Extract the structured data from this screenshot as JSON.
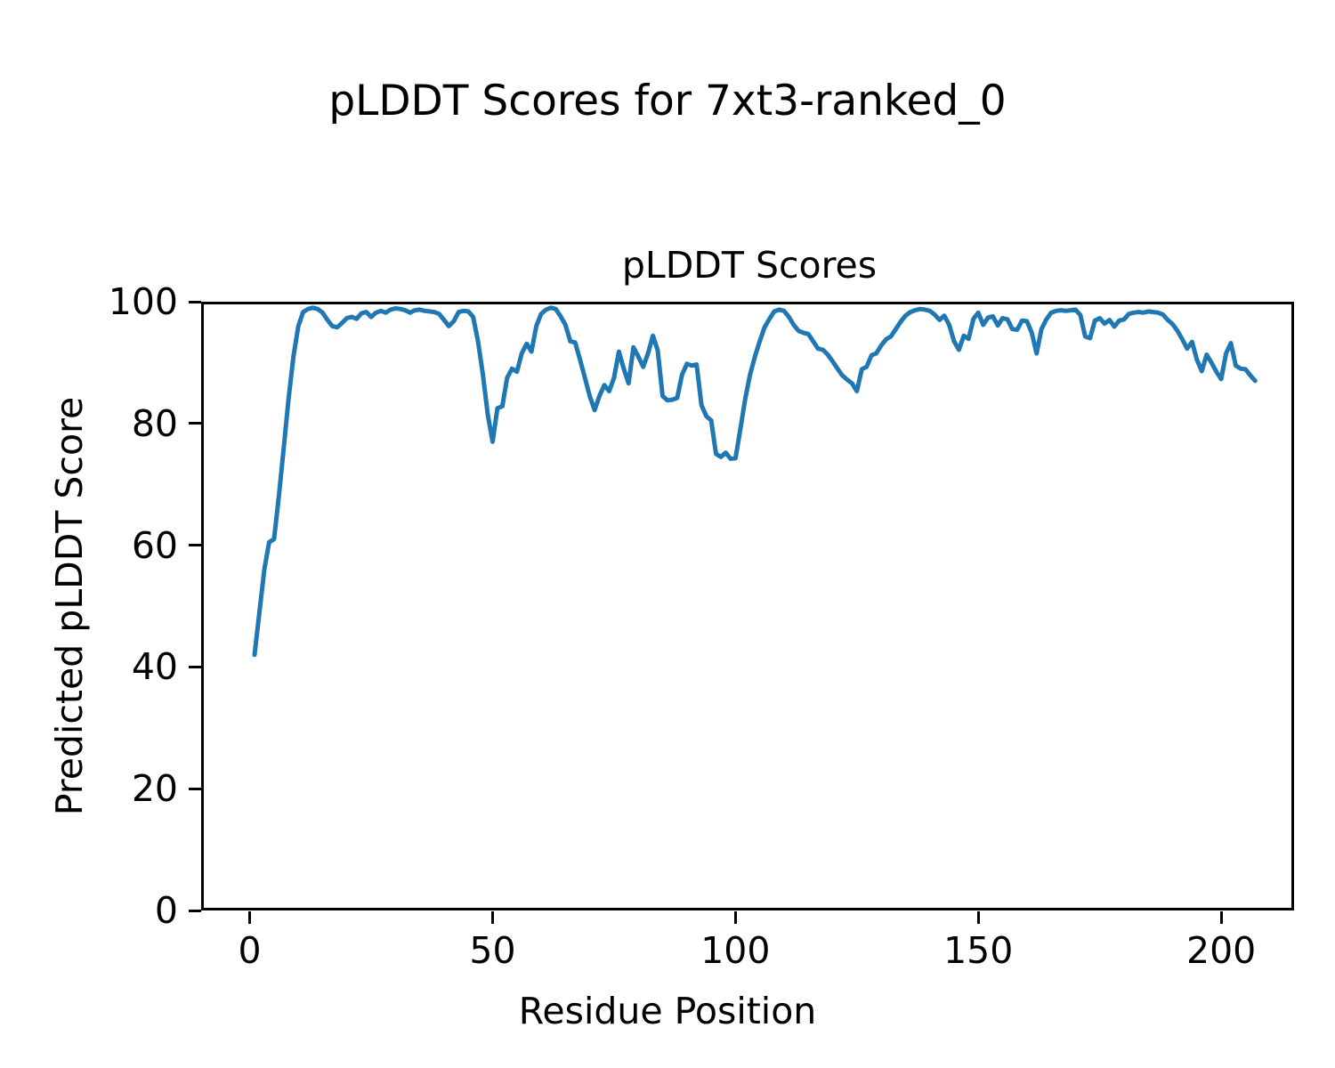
{
  "figure": {
    "suptitle": "pLDDT Scores for 7xt3-ranked_0",
    "background_color": "#ffffff",
    "text_color": "#000000"
  },
  "chart_data": {
    "type": "line",
    "title": "pLDDT Scores",
    "suptitle": "pLDDT Scores for 7xt3-ranked_0",
    "xlabel": "Residue Position",
    "ylabel": "Predicted pLDDT Score",
    "xlim": [
      -10,
      215
    ],
    "ylim": [
      0,
      100
    ],
    "xticks": [
      0,
      50,
      100,
      150,
      200
    ],
    "yticks": [
      0,
      20,
      40,
      60,
      80,
      100
    ],
    "grid": false,
    "legend_position": "none",
    "series": [
      {
        "name": "pLDDT",
        "color": "#1f77b4",
        "line_width": 5,
        "x_start": 1,
        "x_step": 1,
        "values": [
          42,
          49,
          56,
          60.5,
          61,
          68,
          76,
          84,
          91,
          96,
          98.3,
          98.8,
          99,
          98.8,
          98.2,
          97,
          96,
          95.8,
          96.5,
          97.3,
          97.5,
          97.2,
          98.1,
          98.3,
          97.5,
          98.2,
          98.5,
          98.2,
          98.7,
          98.9,
          98.8,
          98.6,
          98.2,
          98.6,
          98.7,
          98.5,
          98.4,
          98.3,
          98,
          97,
          96,
          96.8,
          98.3,
          98.5,
          98.4,
          97.5,
          93.5,
          88,
          81.5,
          77,
          82.5,
          82.8,
          87.5,
          89,
          88.5,
          91.5,
          93.1,
          91.8,
          96,
          98,
          98.7,
          99,
          98.8,
          97.6,
          96.2,
          93.5,
          93.3,
          90.5,
          87.5,
          84.5,
          82.2,
          84.5,
          86.3,
          85.3,
          87.5,
          91.8,
          89,
          86.6,
          92.5,
          91,
          89.3,
          91.5,
          94.4,
          92,
          84.5,
          83.8,
          83.9,
          84.2,
          88,
          89.8,
          89.5,
          89.7,
          83,
          81.2,
          80.5,
          75,
          74.5,
          75.2,
          74.2,
          74.3,
          79,
          84,
          88,
          91,
          93.5,
          95.8,
          97.2,
          98.4,
          98.7,
          98.5,
          97.5,
          96.2,
          95.2,
          94.9,
          94.7,
          93.5,
          92.3,
          92.1,
          91.3,
          90.2,
          89,
          87.9,
          87.2,
          86.6,
          85.3,
          88.9,
          89.3,
          91.2,
          91.5,
          92.8,
          93.8,
          94.3,
          95.5,
          96.7,
          97.7,
          98.3,
          98.6,
          98.8,
          98.7,
          98.5,
          97.9,
          97,
          97.7,
          96.2,
          93.5,
          92.1,
          94.4,
          93.9,
          97.2,
          98.2,
          96.2,
          97.4,
          97.6,
          96.1,
          97.3,
          97.1,
          95.5,
          95.4,
          96.9,
          96.8,
          94.9,
          91.5,
          95.5,
          97.1,
          98.2,
          98.5,
          98.6,
          98.5,
          98.6,
          98.7,
          97.8,
          94.3,
          94,
          96.9,
          97.3,
          96.4,
          97,
          95.9,
          96.9,
          97.1,
          98,
          98.2,
          98.3,
          98.2,
          98.4,
          98.3,
          98.2,
          97.9,
          97,
          96.3,
          95.2,
          93.8,
          92.3,
          93.4,
          90.5,
          88.6,
          91.3,
          90,
          88.5,
          87.3,
          91.5,
          93.2,
          89.5,
          89,
          88.9,
          87.9,
          87
        ]
      }
    ]
  }
}
